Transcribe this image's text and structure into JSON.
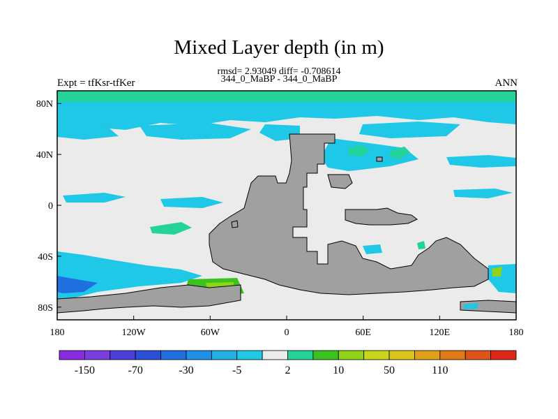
{
  "chart_data": {
    "type": "heatmap",
    "title": "Mixed Layer depth (in m)",
    "subtitle_line1": "rmsd= 2.93049 diff= -0.708614",
    "subtitle_line2": "344_0_MaBP - 344_0_MaBP",
    "left_label": "Expt = tfKsr-tfKer",
    "right_label": "ANN",
    "x_range": [
      -180,
      180
    ],
    "y_range": [
      -90,
      90
    ],
    "x_ticks": [
      {
        "value": -180,
        "label": "180"
      },
      {
        "value": -120,
        "label": "120W"
      },
      {
        "value": -60,
        "label": "60W"
      },
      {
        "value": 0,
        "label": "0"
      },
      {
        "value": 60,
        "label": "60E"
      },
      {
        "value": 120,
        "label": "120E"
      },
      {
        "value": 180,
        "label": "180"
      }
    ],
    "y_ticks": [
      {
        "value": 80,
        "label": "80N"
      },
      {
        "value": 40,
        "label": "40N"
      },
      {
        "value": 0,
        "label": "0"
      },
      {
        "value": -40,
        "label": "40S"
      },
      {
        "value": -80,
        "label": "80S"
      }
    ],
    "colorbar": {
      "colors": [
        "#8a2be2",
        "#7b3fe0",
        "#4b3fd8",
        "#2a4fd8",
        "#1f6fe0",
        "#1e90e8",
        "#22b0e0",
        "#1ec8e6",
        "#ebebeb",
        "#23d39a",
        "#3ac21f",
        "#8fd418",
        "#c8d61a",
        "#d8c41a",
        "#e0a01a",
        "#e07a18",
        "#e05418",
        "#e02818"
      ],
      "labels": [
        {
          "index": 1,
          "label": "-150"
        },
        {
          "index": 3,
          "label": "-70"
        },
        {
          "index": 5,
          "label": "-30"
        },
        {
          "index": 7,
          "label": "-5"
        },
        {
          "index": 9,
          "label": "2"
        },
        {
          "index": 11,
          "label": "10"
        },
        {
          "index": 13,
          "label": "50"
        },
        {
          "index": 15,
          "label": "110"
        }
      ]
    },
    "land_color": "#a0a0a0",
    "background_color": "#ebebeb"
  }
}
